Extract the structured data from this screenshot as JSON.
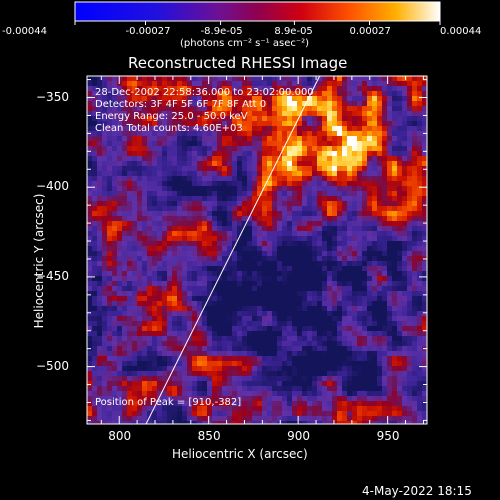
{
  "colorbar": {
    "tick_labels": [
      "-0.00044",
      "-0.00027",
      "-8.9e-05",
      "8.9e-05",
      "0.00027",
      "0.00044"
    ],
    "tick_values": [
      -0.00044,
      -0.00027,
      -8.9e-05,
      8.9e-05,
      0.00027,
      0.00044
    ],
    "range": [
      -0.00044,
      0.00044
    ],
    "units": "(photons cm⁻² s⁻¹ asec⁻²)"
  },
  "chart_data": {
    "type": "heatmap",
    "title": "Reconstructed RHESSI Image",
    "xlabel": "Heliocentric X (arcsec)",
    "ylabel": "Heliocentric Y (arcsec)",
    "xlim": [
      782,
      972
    ],
    "ylim": [
      -532,
      -338
    ],
    "xticks": [
      800,
      850,
      900,
      950
    ],
    "yticks": [
      -350,
      -400,
      -450,
      -500
    ],
    "xtick_labels": [
      "800",
      "850",
      "900",
      "950"
    ],
    "ytick_labels": [
      "−350",
      "−400",
      "−450",
      "−500"
    ],
    "limb_line": [
      [
        815,
        -532
      ],
      [
        912,
        -338
      ]
    ],
    "peak": [
      910,
      -382
    ],
    "annotations": {
      "time": "28-Dec-2002 22:58:36.000 to 23:02:00.000",
      "detectors": "Detectors: 3F 4F 5F 6F 7F 8F  Att 0",
      "energy": "Energy Range: 25.0 - 50.0 keV",
      "clean": "Clean     Total counts: 4.60E+03",
      "peak_label": "Position of Peak = [910,-382]"
    }
  },
  "footer": {
    "date": "4-May-2022 18:15"
  }
}
